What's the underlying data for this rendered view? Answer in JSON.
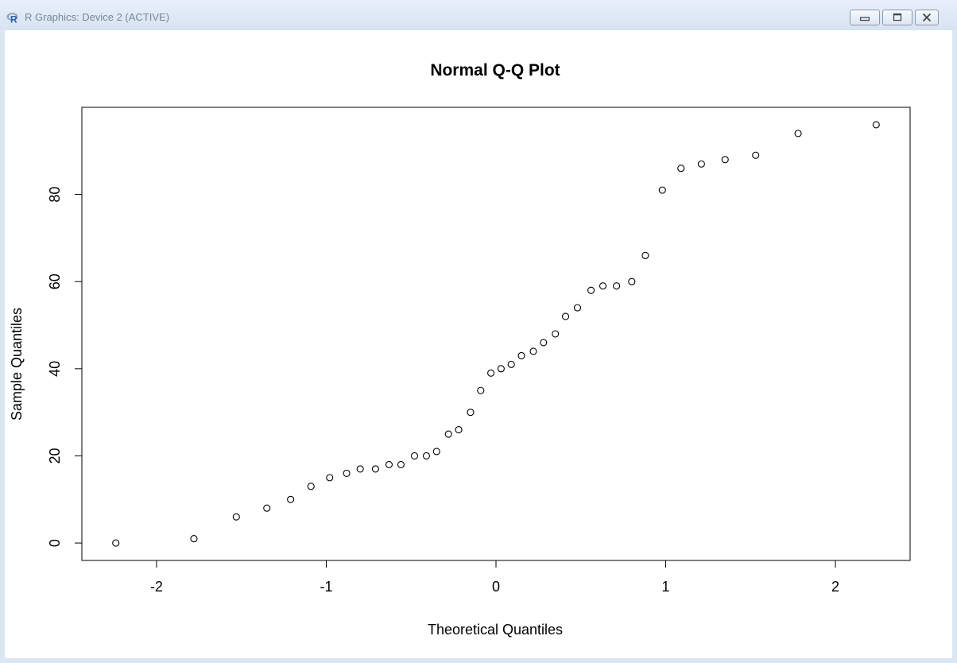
{
  "window": {
    "title": "R Graphics: Device 2 (ACTIVE)",
    "app_icon": "r-logo-icon",
    "controls": [
      "minimize-icon",
      "maximize-icon",
      "close-icon"
    ]
  },
  "chart_data": {
    "type": "scatter",
    "title": "Normal Q-Q Plot",
    "xlabel": "Theoretical Quantiles",
    "ylabel": "Sample Quantiles",
    "xlim": [
      -2.44,
      2.44
    ],
    "ylim": [
      -4,
      100
    ],
    "x_ticks": [
      -2,
      -1,
      0,
      1,
      2
    ],
    "x_tick_labels": [
      "-2",
      "-1",
      "0",
      "1",
      "2"
    ],
    "y_ticks": [
      0,
      20,
      40,
      60,
      80
    ],
    "y_tick_labels": [
      "0",
      "20",
      "40",
      "60",
      "80"
    ],
    "grid": false,
    "marker": "open-circle",
    "series": [
      {
        "x": [
          -2.24,
          -1.78,
          -1.53,
          -1.35,
          -1.21,
          -1.09,
          -0.98,
          -0.88,
          -0.8,
          -0.71,
          -0.63,
          -0.56,
          -0.48,
          -0.41,
          -0.35,
          -0.28,
          -0.22,
          -0.15,
          -0.09,
          -0.03,
          0.03,
          0.09,
          0.15,
          0.22,
          0.28,
          0.35,
          0.41,
          0.48,
          0.56,
          0.63,
          0.71,
          0.8,
          0.88,
          0.98,
          1.09,
          1.21,
          1.35,
          1.53,
          1.78,
          2.24
        ],
        "y": [
          0,
          1,
          6,
          8,
          10,
          13,
          15,
          16,
          17,
          17,
          18,
          18,
          20,
          20,
          21,
          25,
          26,
          30,
          35,
          39,
          40,
          41,
          43,
          44,
          46,
          48,
          52,
          54,
          58,
          59,
          59,
          60,
          66,
          81,
          86,
          87,
          88,
          89,
          94,
          96
        ]
      }
    ]
  }
}
